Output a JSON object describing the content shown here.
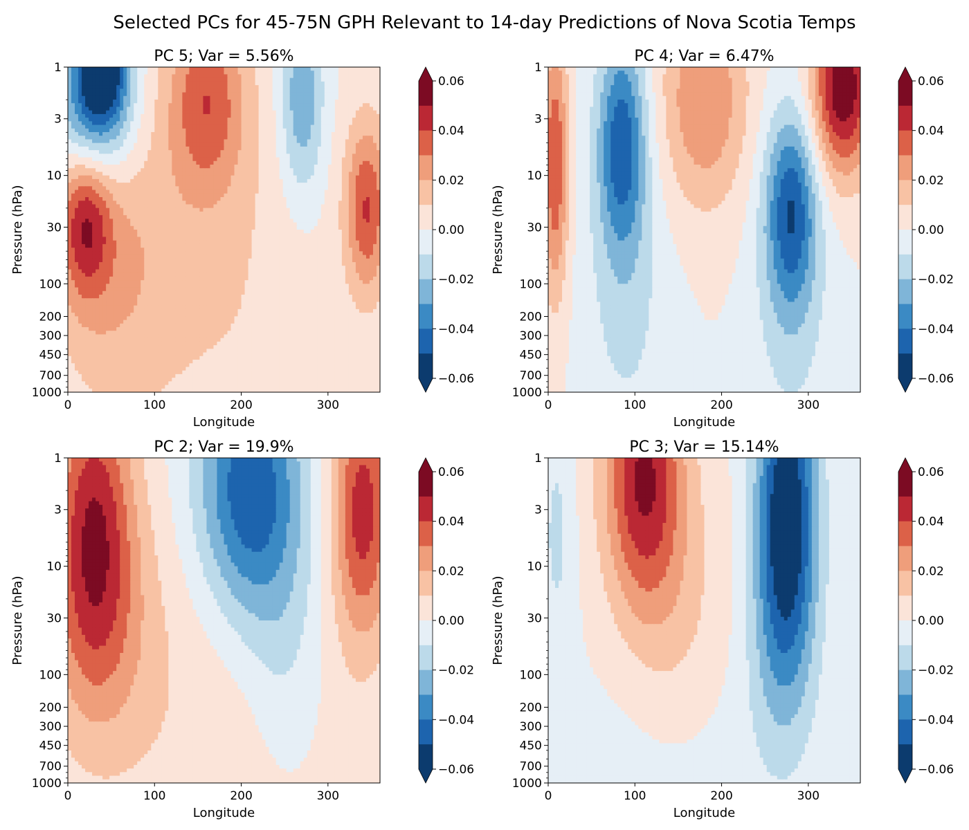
{
  "suptitle": "Selected PCs for 45-75N GPH Relevant to 14-day Predictions of Nova Scotia Temps",
  "chart_data": [
    {
      "type": "heatmap",
      "title": "PC 5; Var = 5.56%",
      "xlabel": "Longitude",
      "ylabel": "Pressure (hPa)",
      "xlim": [
        0,
        360
      ],
      "ylim": [
        1000,
        1
      ],
      "yscale": "log",
      "xticks": [
        0,
        100,
        200,
        300
      ],
      "yticks": [
        1,
        3,
        10,
        30,
        100,
        200,
        300,
        450,
        700,
        1000
      ],
      "colorbar": {
        "levels": [
          -0.06,
          -0.05,
          -0.04,
          -0.03,
          -0.02,
          -0.01,
          0.0,
          0.01,
          0.02,
          0.03,
          0.04,
          0.05,
          0.06
        ],
        "ticks": [
          "0.06",
          "0.04",
          "0.02",
          "0.00",
          "−0.02",
          "−0.04",
          "−0.06"
        ],
        "extend": "both"
      },
      "features": [
        {
          "lon": 40,
          "p": 1,
          "value": -0.055,
          "slon": 30,
          "sp": 0.5
        },
        {
          "lon": 30,
          "p": 3,
          "value": -0.04,
          "slon": 45,
          "sp": 0.7
        },
        {
          "lon": 160,
          "p": 2,
          "value": 0.035,
          "slon": 45,
          "sp": 0.9
        },
        {
          "lon": 270,
          "p": 2,
          "value": -0.03,
          "slon": 25,
          "sp": 0.9
        },
        {
          "lon": 20,
          "p": 25,
          "value": 0.04,
          "slon": 30,
          "sp": 0.7
        },
        {
          "lon": 345,
          "p": 20,
          "value": 0.04,
          "slon": 25,
          "sp": 0.8
        },
        {
          "lon": 50,
          "p": 60,
          "value": 0.02,
          "slon": 70,
          "sp": 1.4
        },
        {
          "lon": 180,
          "p": 100,
          "value": 0.01,
          "slon": 110,
          "sp": 2.0
        }
      ]
    },
    {
      "type": "heatmap",
      "title": "PC 4; Var = 6.47%",
      "xlabel": "Longitude",
      "ylabel": "Pressure (hPa)",
      "xlim": [
        0,
        360
      ],
      "ylim": [
        1000,
        1
      ],
      "yscale": "log",
      "xticks": [
        0,
        100,
        200,
        300
      ],
      "yticks": [
        1,
        3,
        10,
        30,
        100,
        200,
        300,
        450,
        700,
        1000
      ],
      "colorbar": {
        "levels": [
          -0.06,
          -0.05,
          -0.04,
          -0.03,
          -0.02,
          -0.01,
          0.0,
          0.01,
          0.02,
          0.03,
          0.04,
          0.05,
          0.06
        ],
        "ticks": [
          "0.06",
          "0.04",
          "0.02",
          "0.00",
          "−0.02",
          "−0.04",
          "−0.06"
        ],
        "extend": "both"
      },
      "features": [
        {
          "lon": 85,
          "p": 5,
          "value": -0.045,
          "slon": 28,
          "sp": 1.0
        },
        {
          "lon": 280,
          "p": 20,
          "value": -0.045,
          "slon": 30,
          "sp": 0.9
        },
        {
          "lon": 340,
          "p": 1.5,
          "value": 0.06,
          "slon": 35,
          "sp": 0.8
        },
        {
          "lon": 180,
          "p": 2,
          "value": 0.03,
          "slon": 50,
          "sp": 1.0
        },
        {
          "lon": 8,
          "p": 8,
          "value": 0.04,
          "slon": 15,
          "sp": 1.2
        },
        {
          "lon": 90,
          "p": 150,
          "value": -0.012,
          "slon": 50,
          "sp": 1.5
        },
        {
          "lon": 280,
          "p": 200,
          "value": -0.012,
          "slon": 45,
          "sp": 1.3
        }
      ]
    },
    {
      "type": "heatmap",
      "title": "PC 2; Var = 19.9%",
      "xlabel": "Longitude",
      "ylabel": "Pressure (hPa)",
      "xlim": [
        0,
        360
      ],
      "ylim": [
        1000,
        1
      ],
      "yscale": "log",
      "xticks": [
        0,
        100,
        200,
        300
      ],
      "yticks": [
        1,
        3,
        10,
        30,
        100,
        200,
        300,
        450,
        700,
        1000
      ],
      "colorbar": {
        "levels": [
          -0.06,
          -0.05,
          -0.04,
          -0.03,
          -0.02,
          -0.01,
          0.0,
          0.01,
          0.02,
          0.03,
          0.04,
          0.05,
          0.06
        ],
        "ticks": [
          "0.06",
          "0.04",
          "0.02",
          "0.00",
          "−0.02",
          "−0.04",
          "−0.06"
        ],
        "extend": "both"
      },
      "features": [
        {
          "lon": 30,
          "p": 4,
          "value": 0.045,
          "slon": 45,
          "sp": 1.4
        },
        {
          "lon": 210,
          "p": 2,
          "value": -0.05,
          "slon": 60,
          "sp": 1.2
        },
        {
          "lon": 340,
          "p": 3,
          "value": 0.045,
          "slon": 35,
          "sp": 1.2
        },
        {
          "lon": 250,
          "p": 60,
          "value": -0.012,
          "slon": 45,
          "sp": 1.3
        },
        {
          "lon": 40,
          "p": 40,
          "value": 0.015,
          "slon": 70,
          "sp": 1.2
        },
        {
          "lon": 180,
          "p": 300,
          "value": 0.008,
          "slon": 150,
          "sp": 2.0
        }
      ]
    },
    {
      "type": "heatmap",
      "title": "PC 3; Var = 15.14%",
      "xlabel": "Longitude",
      "ylabel": "Pressure (hPa)",
      "xlim": [
        0,
        360
      ],
      "ylim": [
        1000,
        1
      ],
      "yscale": "log",
      "xticks": [
        0,
        100,
        200,
        300
      ],
      "yticks": [
        1,
        3,
        10,
        30,
        100,
        200,
        300,
        450,
        700,
        1000
      ],
      "colorbar": {
        "levels": [
          -0.06,
          -0.05,
          -0.04,
          -0.03,
          -0.02,
          -0.01,
          0.0,
          0.01,
          0.02,
          0.03,
          0.04,
          0.05,
          0.06
        ],
        "ticks": [
          "0.06",
          "0.04",
          "0.02",
          "0.00",
          "−0.02",
          "−0.04",
          "−0.06"
        ],
        "extend": "both"
      },
      "features": [
        {
          "lon": 110,
          "p": 1.5,
          "value": 0.05,
          "slon": 45,
          "sp": 1.2
        },
        {
          "lon": 275,
          "p": 3,
          "value": -0.06,
          "slon": 35,
          "sp": 1.4
        },
        {
          "lon": 150,
          "p": 40,
          "value": 0.012,
          "slon": 60,
          "sp": 1.5
        },
        {
          "lon": 270,
          "p": 60,
          "value": -0.015,
          "slon": 40,
          "sp": 1.2
        },
        {
          "lon": 10,
          "p": 5,
          "value": -0.012,
          "slon": 20,
          "sp": 1.2
        },
        {
          "lon": 150,
          "p": 700,
          "value": -0.008,
          "slon": 100,
          "sp": 1.2
        }
      ]
    }
  ],
  "colors": {
    "levels": [
      "#0c3b6e",
      "#1d64ae",
      "#3b8ac4",
      "#7fb5d8",
      "#bcdaea",
      "#e6eff6",
      "#fbe4d9",
      "#f8c2a4",
      "#ef9e7b",
      "#dc6148",
      "#bb2834",
      "#7c0b23"
    ]
  }
}
